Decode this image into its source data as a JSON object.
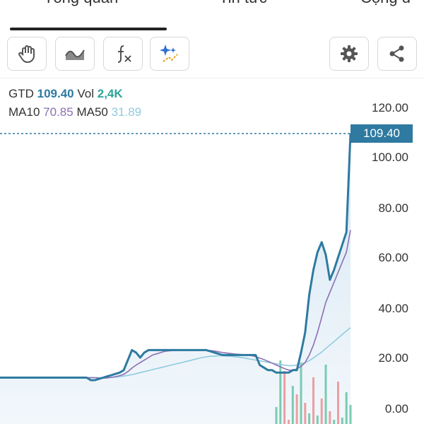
{
  "tabs": {
    "items": [
      {
        "label": "Tổng quan"
      },
      {
        "label": "Tin tức"
      },
      {
        "label": "Cộng đ"
      }
    ]
  },
  "toolbar": {
    "icons": [
      "hand-drag-icon",
      "area-chart-icon",
      "function-icon",
      "ai-sparkle-icon",
      "settings-gear-icon",
      "share-icon"
    ]
  },
  "legend": {
    "ticker": "GTD",
    "price": "109.40",
    "vol_label": "Vol",
    "vol_value": "2,4K",
    "ma10_label": "MA10",
    "ma10_value": "70.85",
    "ma50_label": "MA50",
    "ma50_value": "31.89"
  },
  "colors": {
    "price": "#2e7aa0",
    "ma10": "#8b6fb3",
    "ma50": "#8fcbe0",
    "vol_up": "#5cbfa0",
    "vol_down": "#e88a8a"
  },
  "price_tag": "109.40",
  "chart_data": {
    "type": "line",
    "ylim": [
      0,
      120
    ],
    "yticks": [
      "120.00",
      "100.00",
      "80.00",
      "60.00",
      "40.00",
      "20.00",
      "0.00"
    ],
    "last_price": 109.4,
    "series": [
      {
        "name": "GTD",
        "values": [
          12,
          12,
          12,
          12,
          12,
          12,
          12,
          12,
          12,
          12,
          12,
          12,
          12,
          12,
          12,
          12,
          12,
          12,
          12,
          12,
          12,
          12,
          11,
          11,
          11.5,
          12,
          12.5,
          13,
          13.5,
          14,
          15,
          19,
          23,
          22,
          20,
          22,
          23,
          23,
          23,
          23,
          23,
          23,
          23,
          23,
          23,
          23,
          23,
          23,
          23,
          23,
          23,
          22.5,
          22,
          21.5,
          21,
          21,
          21,
          21,
          21,
          21,
          21,
          21,
          21,
          17,
          16,
          15,
          15,
          14,
          14,
          14,
          14,
          15,
          15,
          22,
          30,
          45,
          55,
          62,
          66,
          61,
          51,
          55,
          60,
          65,
          70,
          109.4
        ]
      },
      {
        "name": "MA10",
        "values": [
          12,
          12,
          12,
          12,
          12,
          12,
          12,
          12,
          12,
          12,
          12,
          12,
          12,
          12,
          12,
          12,
          12,
          12,
          12,
          12,
          12,
          12,
          12,
          12,
          11.8,
          11.8,
          11.9,
          12.1,
          12.4,
          12.8,
          13.3,
          14.4,
          15.8,
          17,
          18,
          19,
          20,
          21,
          21.5,
          22,
          22.5,
          22.7,
          22.8,
          22.9,
          23,
          23,
          23,
          23,
          23,
          23,
          23,
          22.8,
          22.6,
          22.3,
          22,
          21.8,
          21.6,
          21.4,
          21.3,
          21.1,
          21,
          20.8,
          20.4,
          19.8,
          19.2,
          18.5,
          17.8,
          17,
          16.3,
          15.6,
          15,
          15,
          15.5,
          16.5,
          18,
          21,
          25,
          30,
          36,
          42,
          46,
          50,
          54,
          58,
          62,
          70.85
        ]
      },
      {
        "name": "MA50",
        "values": [
          12,
          12,
          12,
          12,
          12,
          12,
          12,
          12,
          12,
          12,
          12,
          12,
          12,
          12,
          12,
          12,
          12,
          12,
          12,
          12,
          12,
          12,
          12,
          12,
          12,
          12,
          12,
          12.1,
          12.2,
          12.4,
          12.6,
          12.9,
          13.2,
          13.6,
          14,
          14.4,
          14.8,
          15.2,
          15.6,
          16,
          16.4,
          16.8,
          17.2,
          17.6,
          18,
          18.4,
          18.8,
          19.2,
          19.6,
          20,
          20.3,
          20.5,
          20.6,
          20.7,
          20.7,
          20.6,
          20.5,
          20.3,
          20.1,
          19.9,
          19.6,
          19.3,
          19,
          18.7,
          18.4,
          18.1,
          17.8,
          17.5,
          17.2,
          17,
          16.8,
          16.8,
          17,
          17.4,
          18,
          18.8,
          19.8,
          21,
          22.2,
          23.6,
          25,
          26.4,
          27.8,
          29.2,
          30.6,
          31.89
        ]
      }
    ],
    "volume_last_bars": [
      8,
      30,
      25,
      2,
      18,
      14,
      29,
      10,
      5,
      22,
      4,
      12,
      28,
      6,
      2,
      20,
      3,
      15,
      9
    ],
    "volume_colors": [
      "up",
      "up",
      "down",
      "down",
      "up",
      "down",
      "up",
      "down",
      "up",
      "down",
      "up",
      "down",
      "up",
      "down",
      "up",
      "down",
      "up",
      "up",
      "up"
    ]
  }
}
